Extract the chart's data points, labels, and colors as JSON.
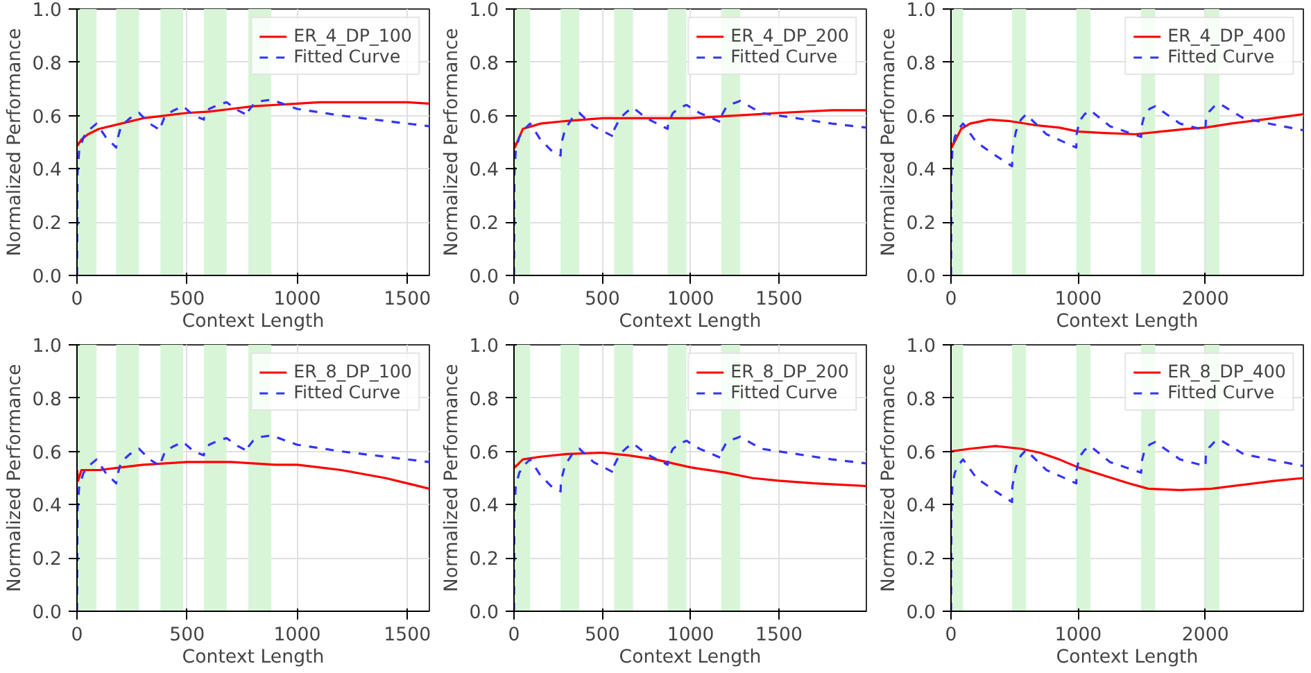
{
  "chart_data": [
    {
      "type": "line",
      "xlabel": "Context Length",
      "ylabel": "Normalized Performance",
      "xlim": [
        0,
        1600
      ],
      "xticks": [
        0,
        500,
        1000,
        1500
      ],
      "ylim": [
        0,
        1
      ],
      "yticks": [
        {
          "value": 0,
          "label": "0.0"
        },
        {
          "value": 0.2,
          "label": "0.2"
        },
        {
          "value": 0.4,
          "label": "0.4"
        },
        {
          "value": 0.6,
          "label": "0.6"
        },
        {
          "value": 0.8,
          "label": "0.8"
        },
        {
          "value": 1,
          "label": "1.0"
        }
      ],
      "grid": true,
      "legend": "top right",
      "bands": [
        {
          "axis": "x",
          "from": 0,
          "to": 89,
          "color": "#d8f5d8"
        },
        {
          "axis": "x",
          "from": 178,
          "to": 282,
          "color": "#d8f5d8"
        },
        {
          "axis": "x",
          "from": 379,
          "to": 482,
          "color": "#d8f5d8"
        },
        {
          "axis": "x",
          "from": 576,
          "to": 679,
          "color": "#d8f5d8"
        },
        {
          "axis": "x",
          "from": 778,
          "to": 882,
          "color": "#d8f5d8"
        }
      ],
      "series": [
        {
          "name": "ER_4_DP_100",
          "color": "#ff0000",
          "line_style": "solid",
          "x": [
            0,
            5,
            20,
            50,
            100,
            200,
            300,
            400,
            500,
            600,
            700,
            800,
            900,
            1000,
            1100,
            1200,
            1300,
            1400,
            1500,
            1600
          ],
          "values": [
            0.5,
            0.49,
            0.51,
            0.53,
            0.55,
            0.57,
            0.59,
            0.6,
            0.61,
            0.615,
            0.625,
            0.635,
            0.64,
            0.645,
            0.65,
            0.65,
            0.65,
            0.65,
            0.65,
            0.645
          ]
        },
        {
          "name": "Fitted Curve",
          "color": "#3333ff",
          "line_style": "dashed",
          "x": [
            0,
            2,
            10,
            30,
            60,
            89,
            130,
            178,
            180,
            200,
            240,
            282,
            330,
            379,
            381,
            400,
            440,
            482,
            530,
            576,
            578,
            600,
            640,
            679,
            730,
            778,
            780,
            800,
            840,
            882,
            1000,
            1200,
            1400,
            1600
          ],
          "values": [
            0,
            0.38,
            0.47,
            0.52,
            0.55,
            0.57,
            0.52,
            0.48,
            0.5,
            0.56,
            0.59,
            0.61,
            0.57,
            0.545,
            0.56,
            0.6,
            0.62,
            0.635,
            0.6,
            0.585,
            0.6,
            0.625,
            0.64,
            0.65,
            0.62,
            0.6,
            0.62,
            0.64,
            0.655,
            0.66,
            0.625,
            0.6,
            0.58,
            0.56
          ]
        }
      ]
    },
    {
      "type": "line",
      "xlabel": "Context Length",
      "ylabel": "Normalized Performance",
      "xlim": [
        0,
        1995
      ],
      "xticks": [
        0,
        500,
        1000,
        1500
      ],
      "ylim": [
        0,
        1
      ],
      "yticks": [
        {
          "value": 0,
          "label": "0.0"
        },
        {
          "value": 0.2,
          "label": "0.2"
        },
        {
          "value": 0.4,
          "label": "0.4"
        },
        {
          "value": 0.6,
          "label": "0.6"
        },
        {
          "value": 0.8,
          "label": "0.8"
        },
        {
          "value": 1,
          "label": "1.0"
        }
      ],
      "grid": true,
      "legend": "top right",
      "bands": [
        {
          "axis": "x",
          "from": 0,
          "to": 91,
          "color": "#d8f5d8"
        },
        {
          "axis": "x",
          "from": 264,
          "to": 370,
          "color": "#d8f5d8"
        },
        {
          "axis": "x",
          "from": 567,
          "to": 674,
          "color": "#d8f5d8"
        },
        {
          "axis": "x",
          "from": 870,
          "to": 976,
          "color": "#d8f5d8"
        },
        {
          "axis": "x",
          "from": 1173,
          "to": 1280,
          "color": "#d8f5d8"
        }
      ],
      "series": [
        {
          "name": "ER_4_DP_200",
          "color": "#ff0000",
          "line_style": "solid",
          "x": [
            0,
            5,
            50,
            150,
            300,
            500,
            750,
            1000,
            1250,
            1500,
            1800,
            1995
          ],
          "values": [
            0.5,
            0.48,
            0.55,
            0.57,
            0.58,
            0.59,
            0.59,
            0.59,
            0.6,
            0.61,
            0.62,
            0.62
          ]
        },
        {
          "name": "Fitted Curve",
          "color": "#3333ff",
          "line_style": "dashed",
          "x": [
            0,
            2,
            10,
            30,
            60,
            91,
            150,
            210,
            264,
            266,
            290,
            330,
            370,
            450,
            567,
            569,
            600,
            640,
            674,
            750,
            870,
            872,
            900,
            940,
            976,
            1050,
            1173,
            1175,
            1200,
            1240,
            1280,
            1400,
            1600,
            1800,
            1995
          ],
          "values": [
            0,
            0.38,
            0.47,
            0.52,
            0.55,
            0.57,
            0.51,
            0.47,
            0.45,
            0.49,
            0.55,
            0.59,
            0.61,
            0.56,
            0.52,
            0.55,
            0.59,
            0.615,
            0.63,
            0.59,
            0.55,
            0.57,
            0.61,
            0.63,
            0.64,
            0.61,
            0.575,
            0.6,
            0.63,
            0.645,
            0.655,
            0.61,
            0.59,
            0.57,
            0.555
          ]
        }
      ]
    },
    {
      "type": "line",
      "xlabel": "Context Length",
      "ylabel": "Normalized Performance",
      "xlim": [
        0,
        2770
      ],
      "xticks": [
        0,
        1000,
        2000
      ],
      "ylim": [
        0,
        1
      ],
      "yticks": [
        {
          "value": 0,
          "label": "0.0"
        },
        {
          "value": 0.2,
          "label": "0.2"
        },
        {
          "value": 0.4,
          "label": "0.4"
        },
        {
          "value": 0.6,
          "label": "0.6"
        },
        {
          "value": 0.8,
          "label": "0.8"
        },
        {
          "value": 1,
          "label": "1.0"
        }
      ],
      "grid": true,
      "legend": "top right",
      "bands": [
        {
          "axis": "x",
          "from": 0,
          "to": 95,
          "color": "#d8f5d8"
        },
        {
          "axis": "x",
          "from": 480,
          "to": 590,
          "color": "#d8f5d8"
        },
        {
          "axis": "x",
          "from": 985,
          "to": 1095,
          "color": "#d8f5d8"
        },
        {
          "axis": "x",
          "from": 1495,
          "to": 1605,
          "color": "#d8f5d8"
        },
        {
          "axis": "x",
          "from": 2000,
          "to": 2110,
          "color": "#d8f5d8"
        }
      ],
      "series": [
        {
          "name": "ER_4_DP_400",
          "color": "#ff0000",
          "line_style": "solid",
          "x": [
            0,
            5,
            80,
            150,
            300,
            450,
            650,
            850,
            1000,
            1200,
            1450,
            1650,
            1850,
            2000,
            2200,
            2450,
            2770
          ],
          "values": [
            0.5,
            0.48,
            0.55,
            0.57,
            0.585,
            0.58,
            0.565,
            0.555,
            0.54,
            0.535,
            0.53,
            0.54,
            0.55,
            0.555,
            0.57,
            0.585,
            0.605
          ]
        },
        {
          "name": "Fitted Curve",
          "color": "#3333ff",
          "line_style": "dashed",
          "x": [
            0,
            3,
            10,
            30,
            60,
            95,
            200,
            350,
            480,
            483,
            510,
            550,
            590,
            750,
            985,
            988,
            1010,
            1050,
            1095,
            1250,
            1495,
            1498,
            1520,
            1560,
            1605,
            1800,
            2000,
            2003,
            2030,
            2070,
            2110,
            2300,
            2550,
            2770
          ],
          "values": [
            0,
            0.38,
            0.47,
            0.52,
            0.55,
            0.57,
            0.5,
            0.45,
            0.41,
            0.47,
            0.54,
            0.585,
            0.605,
            0.53,
            0.48,
            0.53,
            0.58,
            0.605,
            0.62,
            0.56,
            0.52,
            0.56,
            0.6,
            0.625,
            0.635,
            0.57,
            0.545,
            0.58,
            0.615,
            0.635,
            0.645,
            0.59,
            0.565,
            0.545
          ]
        }
      ]
    },
    {
      "type": "line",
      "xlabel": "Context Length",
      "ylabel": "Normalized Performance",
      "xlim": [
        0,
        1600
      ],
      "xticks": [
        0,
        500,
        1000,
        1500
      ],
      "ylim": [
        0,
        1
      ],
      "yticks": [
        {
          "value": 0,
          "label": "0.0"
        },
        {
          "value": 0.2,
          "label": "0.2"
        },
        {
          "value": 0.4,
          "label": "0.4"
        },
        {
          "value": 0.6,
          "label": "0.6"
        },
        {
          "value": 0.8,
          "label": "0.8"
        },
        {
          "value": 1,
          "label": "1.0"
        }
      ],
      "grid": true,
      "legend": "top right",
      "bands": [
        {
          "axis": "x",
          "from": 0,
          "to": 89,
          "color": "#d8f5d8"
        },
        {
          "axis": "x",
          "from": 178,
          "to": 282,
          "color": "#d8f5d8"
        },
        {
          "axis": "x",
          "from": 379,
          "to": 482,
          "color": "#d8f5d8"
        },
        {
          "axis": "x",
          "from": 576,
          "to": 679,
          "color": "#d8f5d8"
        },
        {
          "axis": "x",
          "from": 778,
          "to": 882,
          "color": "#d8f5d8"
        }
      ],
      "series": [
        {
          "name": "ER_8_DP_100",
          "color": "#ff0000",
          "line_style": "solid",
          "x": [
            0,
            5,
            20,
            100,
            200,
            300,
            400,
            500,
            600,
            700,
            800,
            900,
            1000,
            1100,
            1200,
            1300,
            1400,
            1500,
            1600
          ],
          "values": [
            0.53,
            0.49,
            0.53,
            0.53,
            0.54,
            0.55,
            0.555,
            0.56,
            0.56,
            0.56,
            0.555,
            0.55,
            0.55,
            0.54,
            0.53,
            0.515,
            0.5,
            0.48,
            0.46
          ]
        },
        {
          "name": "Fitted Curve",
          "color": "#3333ff",
          "line_style": "dashed",
          "x": [
            0,
            2,
            10,
            30,
            60,
            89,
            130,
            178,
            180,
            200,
            240,
            282,
            330,
            379,
            381,
            400,
            440,
            482,
            530,
            576,
            578,
            600,
            640,
            679,
            730,
            778,
            780,
            800,
            840,
            882,
            1000,
            1200,
            1400,
            1600
          ],
          "values": [
            0,
            0.38,
            0.47,
            0.52,
            0.55,
            0.57,
            0.52,
            0.48,
            0.5,
            0.56,
            0.59,
            0.61,
            0.57,
            0.545,
            0.56,
            0.6,
            0.62,
            0.635,
            0.6,
            0.585,
            0.6,
            0.625,
            0.64,
            0.65,
            0.62,
            0.6,
            0.62,
            0.64,
            0.655,
            0.66,
            0.625,
            0.6,
            0.58,
            0.56
          ]
        }
      ]
    },
    {
      "type": "line",
      "xlabel": "Context Length",
      "ylabel": "Normalized Performance",
      "xlim": [
        0,
        1995
      ],
      "xticks": [
        0,
        500,
        1000,
        1500
      ],
      "ylim": [
        0,
        1
      ],
      "yticks": [
        {
          "value": 0,
          "label": "0.0"
        },
        {
          "value": 0.2,
          "label": "0.2"
        },
        {
          "value": 0.4,
          "label": "0.4"
        },
        {
          "value": 0.6,
          "label": "0.6"
        },
        {
          "value": 0.8,
          "label": "0.8"
        },
        {
          "value": 1,
          "label": "1.0"
        }
      ],
      "grid": true,
      "legend": "top right",
      "bands": [
        {
          "axis": "x",
          "from": 0,
          "to": 91,
          "color": "#d8f5d8"
        },
        {
          "axis": "x",
          "from": 264,
          "to": 370,
          "color": "#d8f5d8"
        },
        {
          "axis": "x",
          "from": 567,
          "to": 674,
          "color": "#d8f5d8"
        },
        {
          "axis": "x",
          "from": 870,
          "to": 976,
          "color": "#d8f5d8"
        },
        {
          "axis": "x",
          "from": 1173,
          "to": 1280,
          "color": "#d8f5d8"
        }
      ],
      "series": [
        {
          "name": "ER_8_DP_200",
          "color": "#ff0000",
          "line_style": "solid",
          "x": [
            0,
            5,
            50,
            150,
            300,
            500,
            650,
            800,
            900,
            1000,
            1200,
            1350,
            1500,
            1700,
            1850,
            1995
          ],
          "values": [
            0.55,
            0.54,
            0.57,
            0.58,
            0.59,
            0.595,
            0.585,
            0.57,
            0.555,
            0.54,
            0.52,
            0.5,
            0.49,
            0.48,
            0.475,
            0.47
          ]
        },
        {
          "name": "Fitted Curve",
          "color": "#3333ff",
          "line_style": "dashed",
          "x": [
            0,
            2,
            10,
            30,
            60,
            91,
            150,
            210,
            264,
            266,
            290,
            330,
            370,
            450,
            567,
            569,
            600,
            640,
            674,
            750,
            870,
            872,
            900,
            940,
            976,
            1050,
            1173,
            1175,
            1200,
            1240,
            1280,
            1400,
            1600,
            1800,
            1995
          ],
          "values": [
            0,
            0.38,
            0.47,
            0.52,
            0.55,
            0.57,
            0.51,
            0.47,
            0.45,
            0.49,
            0.55,
            0.59,
            0.61,
            0.56,
            0.52,
            0.55,
            0.59,
            0.615,
            0.63,
            0.59,
            0.55,
            0.57,
            0.61,
            0.63,
            0.64,
            0.61,
            0.575,
            0.6,
            0.63,
            0.645,
            0.655,
            0.61,
            0.59,
            0.57,
            0.555
          ]
        }
      ]
    },
    {
      "type": "line",
      "xlabel": "Context Length",
      "ylabel": "Normalized Performance",
      "xlim": [
        0,
        2770
      ],
      "xticks": [
        0,
        1000,
        2000
      ],
      "ylim": [
        0,
        1
      ],
      "yticks": [
        {
          "value": 0,
          "label": "0.0"
        },
        {
          "value": 0.2,
          "label": "0.2"
        },
        {
          "value": 0.4,
          "label": "0.4"
        },
        {
          "value": 0.6,
          "label": "0.6"
        },
        {
          "value": 0.8,
          "label": "0.8"
        },
        {
          "value": 1,
          "label": "1.0"
        }
      ],
      "grid": true,
      "legend": "top right",
      "bands": [
        {
          "axis": "x",
          "from": 0,
          "to": 95,
          "color": "#d8f5d8"
        },
        {
          "axis": "x",
          "from": 480,
          "to": 590,
          "color": "#d8f5d8"
        },
        {
          "axis": "x",
          "from": 985,
          "to": 1095,
          "color": "#d8f5d8"
        },
        {
          "axis": "x",
          "from": 1495,
          "to": 1605,
          "color": "#d8f5d8"
        },
        {
          "axis": "x",
          "from": 2000,
          "to": 2110,
          "color": "#d8f5d8"
        }
      ],
      "series": [
        {
          "name": "ER_8_DP_400",
          "color": "#ff0000",
          "line_style": "solid",
          "x": [
            0,
            150,
            350,
            550,
            700,
            850,
            1000,
            1200,
            1400,
            1550,
            1800,
            2050,
            2300,
            2550,
            2770
          ],
          "values": [
            0.6,
            0.61,
            0.62,
            0.61,
            0.595,
            0.57,
            0.54,
            0.51,
            0.48,
            0.46,
            0.455,
            0.46,
            0.475,
            0.49,
            0.5
          ]
        },
        {
          "name": "Fitted Curve",
          "color": "#3333ff",
          "line_style": "dashed",
          "x": [
            0,
            3,
            10,
            30,
            60,
            95,
            200,
            350,
            480,
            483,
            510,
            550,
            590,
            750,
            985,
            988,
            1010,
            1050,
            1095,
            1250,
            1495,
            1498,
            1520,
            1560,
            1605,
            1800,
            2000,
            2003,
            2030,
            2070,
            2110,
            2300,
            2550,
            2770
          ],
          "values": [
            0,
            0.38,
            0.47,
            0.52,
            0.55,
            0.57,
            0.5,
            0.45,
            0.41,
            0.47,
            0.54,
            0.585,
            0.605,
            0.53,
            0.48,
            0.53,
            0.58,
            0.605,
            0.62,
            0.56,
            0.52,
            0.56,
            0.6,
            0.625,
            0.635,
            0.57,
            0.545,
            0.58,
            0.615,
            0.635,
            0.645,
            0.59,
            0.565,
            0.545
          ]
        }
      ]
    }
  ]
}
